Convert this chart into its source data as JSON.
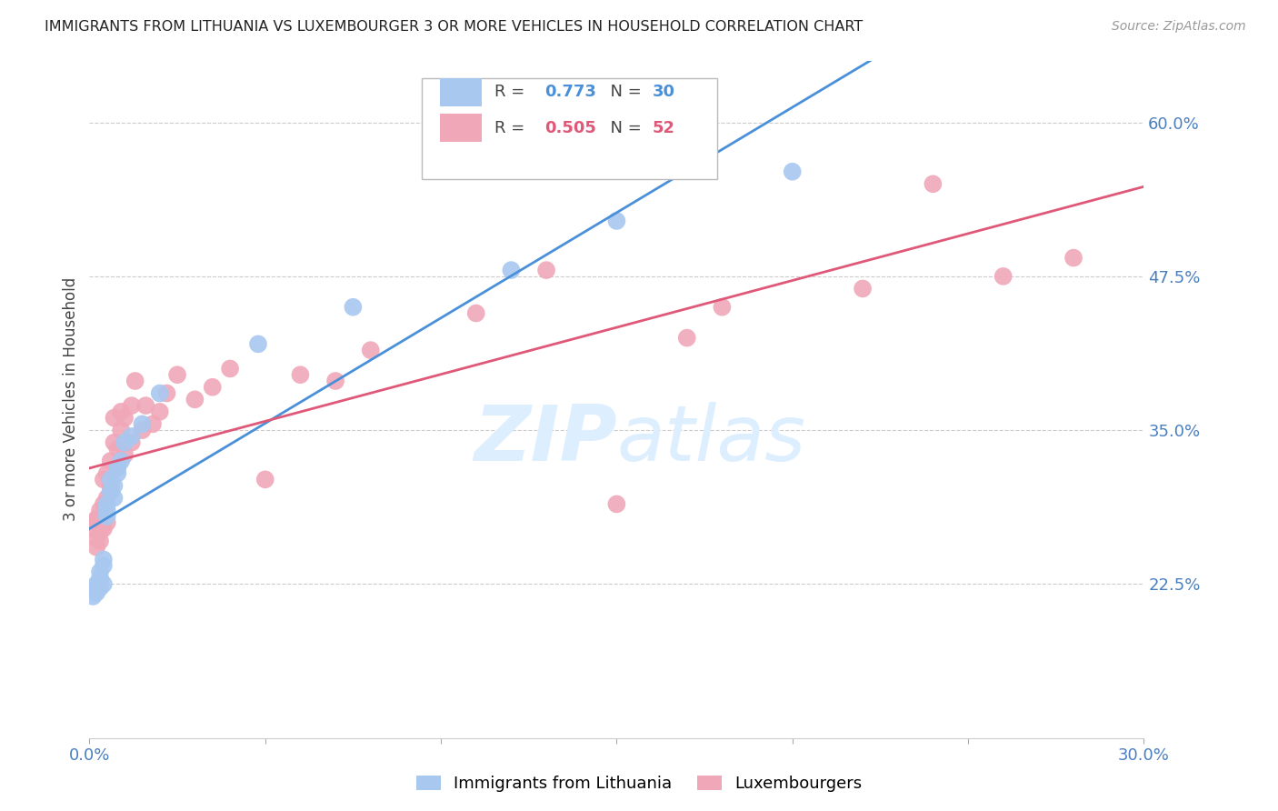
{
  "title": "IMMIGRANTS FROM LITHUANIA VS LUXEMBOURGER 3 OR MORE VEHICLES IN HOUSEHOLD CORRELATION CHART",
  "source": "Source: ZipAtlas.com",
  "ylabel": "3 or more Vehicles in Household",
  "xlim": [
    0.0,
    0.3
  ],
  "ylim": [
    0.1,
    0.65
  ],
  "yticks": [
    0.225,
    0.35,
    0.475,
    0.6
  ],
  "ytick_labels": [
    "22.5%",
    "35.0%",
    "47.5%",
    "60.0%"
  ],
  "blue_R": 0.773,
  "blue_N": 30,
  "pink_R": 0.505,
  "pink_N": 52,
  "blue_color": "#a8c8f0",
  "pink_color": "#f0a8b8",
  "blue_line_color": "#4a90d9",
  "pink_line_color": "#e05878",
  "title_color": "#222222",
  "axis_label_color": "#444444",
  "tick_color": "#4a7fbf",
  "grid_color": "#cccccc",
  "watermark_color": "#ddeeff",
  "legend_blue_label": "Immigrants from Lithuania",
  "legend_pink_label": "Luxembourgers",
  "blue_x": [
    0.001,
    0.001,
    0.002,
    0.002,
    0.003,
    0.003,
    0.003,
    0.003,
    0.004,
    0.004,
    0.004,
    0.005,
    0.005,
    0.005,
    0.006,
    0.006,
    0.007,
    0.007,
    0.008,
    0.008,
    0.009,
    0.01,
    0.012,
    0.015,
    0.02,
    0.048,
    0.075,
    0.12,
    0.15,
    0.2
  ],
  "blue_y": [
    0.215,
    0.22,
    0.218,
    0.225,
    0.222,
    0.228,
    0.23,
    0.235,
    0.225,
    0.24,
    0.245,
    0.28,
    0.285,
    0.29,
    0.3,
    0.31,
    0.295,
    0.305,
    0.315,
    0.32,
    0.325,
    0.34,
    0.345,
    0.355,
    0.38,
    0.42,
    0.45,
    0.48,
    0.52,
    0.56
  ],
  "pink_x": [
    0.001,
    0.001,
    0.002,
    0.002,
    0.002,
    0.003,
    0.003,
    0.003,
    0.003,
    0.004,
    0.004,
    0.004,
    0.005,
    0.005,
    0.005,
    0.006,
    0.006,
    0.006,
    0.007,
    0.007,
    0.008,
    0.008,
    0.009,
    0.009,
    0.01,
    0.01,
    0.012,
    0.012,
    0.013,
    0.015,
    0.016,
    0.018,
    0.02,
    0.022,
    0.025,
    0.03,
    0.035,
    0.04,
    0.05,
    0.06,
    0.07,
    0.08,
    0.1,
    0.11,
    0.13,
    0.15,
    0.17,
    0.18,
    0.22,
    0.24,
    0.26,
    0.28
  ],
  "pink_y": [
    0.27,
    0.275,
    0.255,
    0.262,
    0.278,
    0.26,
    0.268,
    0.272,
    0.285,
    0.27,
    0.29,
    0.31,
    0.275,
    0.295,
    0.315,
    0.3,
    0.305,
    0.325,
    0.34,
    0.36,
    0.32,
    0.335,
    0.35,
    0.365,
    0.33,
    0.36,
    0.34,
    0.37,
    0.39,
    0.35,
    0.37,
    0.355,
    0.365,
    0.38,
    0.395,
    0.375,
    0.385,
    0.4,
    0.31,
    0.395,
    0.39,
    0.415,
    0.57,
    0.445,
    0.48,
    0.29,
    0.425,
    0.45,
    0.465,
    0.55,
    0.475,
    0.49
  ]
}
